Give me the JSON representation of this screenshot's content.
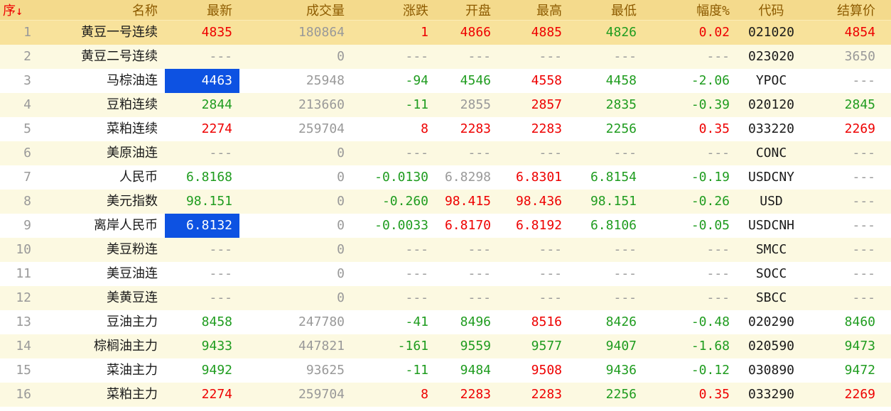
{
  "colors": {
    "red": "#ee0000",
    "green": "#1f9c1f",
    "gray": "#999999",
    "black": "#1a1a1a",
    "header_text": "#8d5b00",
    "header_bg": "#f4da8c",
    "selected_row_bg": "#f8e29b",
    "alt_row_bg": "#fcf9e1",
    "white_row_bg": "#ffffff",
    "selected_cell_bg": "#0d52e2",
    "selected_cell_text": "#ffffff"
  },
  "table": {
    "sort": {
      "column": "seq",
      "direction": "desc",
      "arrow_glyph": "↓"
    },
    "columns": [
      {
        "key": "seq",
        "label": "序",
        "sorted": true
      },
      {
        "key": "name",
        "label": "名称"
      },
      {
        "key": "last",
        "label": "最新"
      },
      {
        "key": "volume",
        "label": "成交量"
      },
      {
        "key": "change",
        "label": "涨跌"
      },
      {
        "key": "open",
        "label": "开盘"
      },
      {
        "key": "high",
        "label": "最高"
      },
      {
        "key": "low",
        "label": "最低"
      },
      {
        "key": "range",
        "label": "幅度%"
      },
      {
        "key": "code",
        "label": "代码"
      },
      {
        "key": "settle",
        "label": "结算价"
      }
    ],
    "rows": [
      {
        "bg": "gold",
        "cells": [
          [
            "1",
            "gray"
          ],
          [
            "黄豆一号连续",
            "black"
          ],
          [
            "4835",
            "red"
          ],
          [
            "180864",
            "gray"
          ],
          [
            "1",
            "red"
          ],
          [
            "4866",
            "red"
          ],
          [
            "4885",
            "red"
          ],
          [
            "4826",
            "green"
          ],
          [
            "0.02",
            "red"
          ],
          [
            "021020",
            "black"
          ],
          [
            "4854",
            "red"
          ]
        ]
      },
      {
        "bg": "cream",
        "cells": [
          [
            "2",
            "gray"
          ],
          [
            "黄豆二号连续",
            "black"
          ],
          [
            "---",
            "gray"
          ],
          [
            "0",
            "gray"
          ],
          [
            "---",
            "gray"
          ],
          [
            "---",
            "gray"
          ],
          [
            "---",
            "gray"
          ],
          [
            "---",
            "gray"
          ],
          [
            "---",
            "gray"
          ],
          [
            "023020",
            "black"
          ],
          [
            "3650",
            "gray"
          ]
        ]
      },
      {
        "bg": "white",
        "cells": [
          [
            "3",
            "gray"
          ],
          [
            "马棕油连",
            "black"
          ],
          [
            "4463",
            "sel"
          ],
          [
            "25948",
            "gray"
          ],
          [
            "-94",
            "green"
          ],
          [
            "4546",
            "green"
          ],
          [
            "4558",
            "red"
          ],
          [
            "4458",
            "green"
          ],
          [
            "-2.06",
            "green"
          ],
          [
            "YPOC",
            "black"
          ],
          [
            "---",
            "gray"
          ]
        ]
      },
      {
        "bg": "cream",
        "cells": [
          [
            "4",
            "gray"
          ],
          [
            "豆粕连续",
            "black"
          ],
          [
            "2844",
            "green"
          ],
          [
            "213660",
            "gray"
          ],
          [
            "-11",
            "green"
          ],
          [
            "2855",
            "gray"
          ],
          [
            "2857",
            "red"
          ],
          [
            "2835",
            "green"
          ],
          [
            "-0.39",
            "green"
          ],
          [
            "020120",
            "black"
          ],
          [
            "2845",
            "green"
          ]
        ]
      },
      {
        "bg": "white",
        "cells": [
          [
            "5",
            "gray"
          ],
          [
            "菜粕连续",
            "black"
          ],
          [
            "2274",
            "red"
          ],
          [
            "259704",
            "gray"
          ],
          [
            "8",
            "red"
          ],
          [
            "2283",
            "red"
          ],
          [
            "2283",
            "red"
          ],
          [
            "2256",
            "green"
          ],
          [
            "0.35",
            "red"
          ],
          [
            "033220",
            "black"
          ],
          [
            "2269",
            "red"
          ]
        ]
      },
      {
        "bg": "cream",
        "cells": [
          [
            "6",
            "gray"
          ],
          [
            "美原油连",
            "black"
          ],
          [
            "---",
            "gray"
          ],
          [
            "0",
            "gray"
          ],
          [
            "---",
            "gray"
          ],
          [
            "---",
            "gray"
          ],
          [
            "---",
            "gray"
          ],
          [
            "---",
            "gray"
          ],
          [
            "---",
            "gray"
          ],
          [
            "CONC",
            "black"
          ],
          [
            "---",
            "gray"
          ]
        ]
      },
      {
        "bg": "white",
        "cells": [
          [
            "7",
            "gray"
          ],
          [
            "人民币",
            "black"
          ],
          [
            "6.8168",
            "green"
          ],
          [
            "0",
            "gray"
          ],
          [
            "-0.0130",
            "green"
          ],
          [
            "6.8298",
            "gray"
          ],
          [
            "6.8301",
            "red"
          ],
          [
            "6.8154",
            "green"
          ],
          [
            "-0.19",
            "green"
          ],
          [
            "USDCNY",
            "black"
          ],
          [
            "---",
            "gray"
          ]
        ]
      },
      {
        "bg": "cream",
        "cells": [
          [
            "8",
            "gray"
          ],
          [
            "美元指数",
            "black"
          ],
          [
            "98.151",
            "green"
          ],
          [
            "0",
            "gray"
          ],
          [
            "-0.260",
            "green"
          ],
          [
            "98.415",
            "red"
          ],
          [
            "98.436",
            "red"
          ],
          [
            "98.151",
            "green"
          ],
          [
            "-0.26",
            "green"
          ],
          [
            "USD",
            "black"
          ],
          [
            "---",
            "gray"
          ]
        ]
      },
      {
        "bg": "white",
        "cells": [
          [
            "9",
            "gray"
          ],
          [
            "离岸人民币",
            "black"
          ],
          [
            "6.8132",
            "sel"
          ],
          [
            "0",
            "gray"
          ],
          [
            "-0.0033",
            "green"
          ],
          [
            "6.8170",
            "red"
          ],
          [
            "6.8192",
            "red"
          ],
          [
            "6.8106",
            "green"
          ],
          [
            "-0.05",
            "green"
          ],
          [
            "USDCNH",
            "black"
          ],
          [
            "---",
            "gray"
          ]
        ]
      },
      {
        "bg": "cream",
        "cells": [
          [
            "10",
            "gray"
          ],
          [
            "美豆粉连",
            "black"
          ],
          [
            "---",
            "gray"
          ],
          [
            "0",
            "gray"
          ],
          [
            "---",
            "gray"
          ],
          [
            "---",
            "gray"
          ],
          [
            "---",
            "gray"
          ],
          [
            "---",
            "gray"
          ],
          [
            "---",
            "gray"
          ],
          [
            "SMCC",
            "black"
          ],
          [
            "---",
            "gray"
          ]
        ]
      },
      {
        "bg": "white",
        "cells": [
          [
            "11",
            "gray"
          ],
          [
            "美豆油连",
            "black"
          ],
          [
            "---",
            "gray"
          ],
          [
            "0",
            "gray"
          ],
          [
            "---",
            "gray"
          ],
          [
            "---",
            "gray"
          ],
          [
            "---",
            "gray"
          ],
          [
            "---",
            "gray"
          ],
          [
            "---",
            "gray"
          ],
          [
            "SOCC",
            "black"
          ],
          [
            "---",
            "gray"
          ]
        ]
      },
      {
        "bg": "cream",
        "cells": [
          [
            "12",
            "gray"
          ],
          [
            "美黄豆连",
            "black"
          ],
          [
            "---",
            "gray"
          ],
          [
            "0",
            "gray"
          ],
          [
            "---",
            "gray"
          ],
          [
            "---",
            "gray"
          ],
          [
            "---",
            "gray"
          ],
          [
            "---",
            "gray"
          ],
          [
            "---",
            "gray"
          ],
          [
            "SBCC",
            "black"
          ],
          [
            "---",
            "gray"
          ]
        ]
      },
      {
        "bg": "white",
        "cells": [
          [
            "13",
            "gray"
          ],
          [
            "豆油主力",
            "black"
          ],
          [
            "8458",
            "green"
          ],
          [
            "247780",
            "gray"
          ],
          [
            "-41",
            "green"
          ],
          [
            "8496",
            "green"
          ],
          [
            "8516",
            "red"
          ],
          [
            "8426",
            "green"
          ],
          [
            "-0.48",
            "green"
          ],
          [
            "020290",
            "black"
          ],
          [
            "8460",
            "green"
          ]
        ]
      },
      {
        "bg": "cream",
        "cells": [
          [
            "14",
            "gray"
          ],
          [
            "棕榈油主力",
            "black"
          ],
          [
            "9433",
            "green"
          ],
          [
            "447821",
            "gray"
          ],
          [
            "-161",
            "green"
          ],
          [
            "9559",
            "green"
          ],
          [
            "9577",
            "green"
          ],
          [
            "9407",
            "green"
          ],
          [
            "-1.68",
            "green"
          ],
          [
            "020590",
            "black"
          ],
          [
            "9473",
            "green"
          ]
        ]
      },
      {
        "bg": "white",
        "cells": [
          [
            "15",
            "gray"
          ],
          [
            "菜油主力",
            "black"
          ],
          [
            "9492",
            "green"
          ],
          [
            "93625",
            "gray"
          ],
          [
            "-11",
            "green"
          ],
          [
            "9484",
            "green"
          ],
          [
            "9508",
            "red"
          ],
          [
            "9436",
            "green"
          ],
          [
            "-0.12",
            "green"
          ],
          [
            "030890",
            "black"
          ],
          [
            "9472",
            "green"
          ]
        ]
      },
      {
        "bg": "cream",
        "cells": [
          [
            "16",
            "gray"
          ],
          [
            "菜粕主力",
            "black"
          ],
          [
            "2274",
            "red"
          ],
          [
            "259704",
            "gray"
          ],
          [
            "8",
            "red"
          ],
          [
            "2283",
            "red"
          ],
          [
            "2283",
            "red"
          ],
          [
            "2256",
            "green"
          ],
          [
            "0.35",
            "red"
          ],
          [
            "033290",
            "black"
          ],
          [
            "2269",
            "red"
          ]
        ]
      }
    ]
  }
}
